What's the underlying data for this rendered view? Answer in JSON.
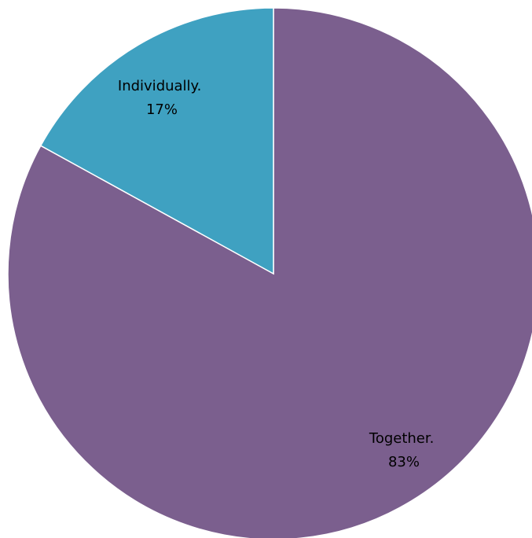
{
  "chart_data": {
    "type": "pie",
    "start_angle_deg": 0,
    "direction": "clockwise",
    "slices": [
      {
        "name": "Together.",
        "value": 83,
        "percent_label": "83%",
        "color": "#7b5f8e"
      },
      {
        "name": "Individually.",
        "value": 17,
        "percent_label": "17%",
        "color": "#3fa1c1"
      }
    ]
  }
}
